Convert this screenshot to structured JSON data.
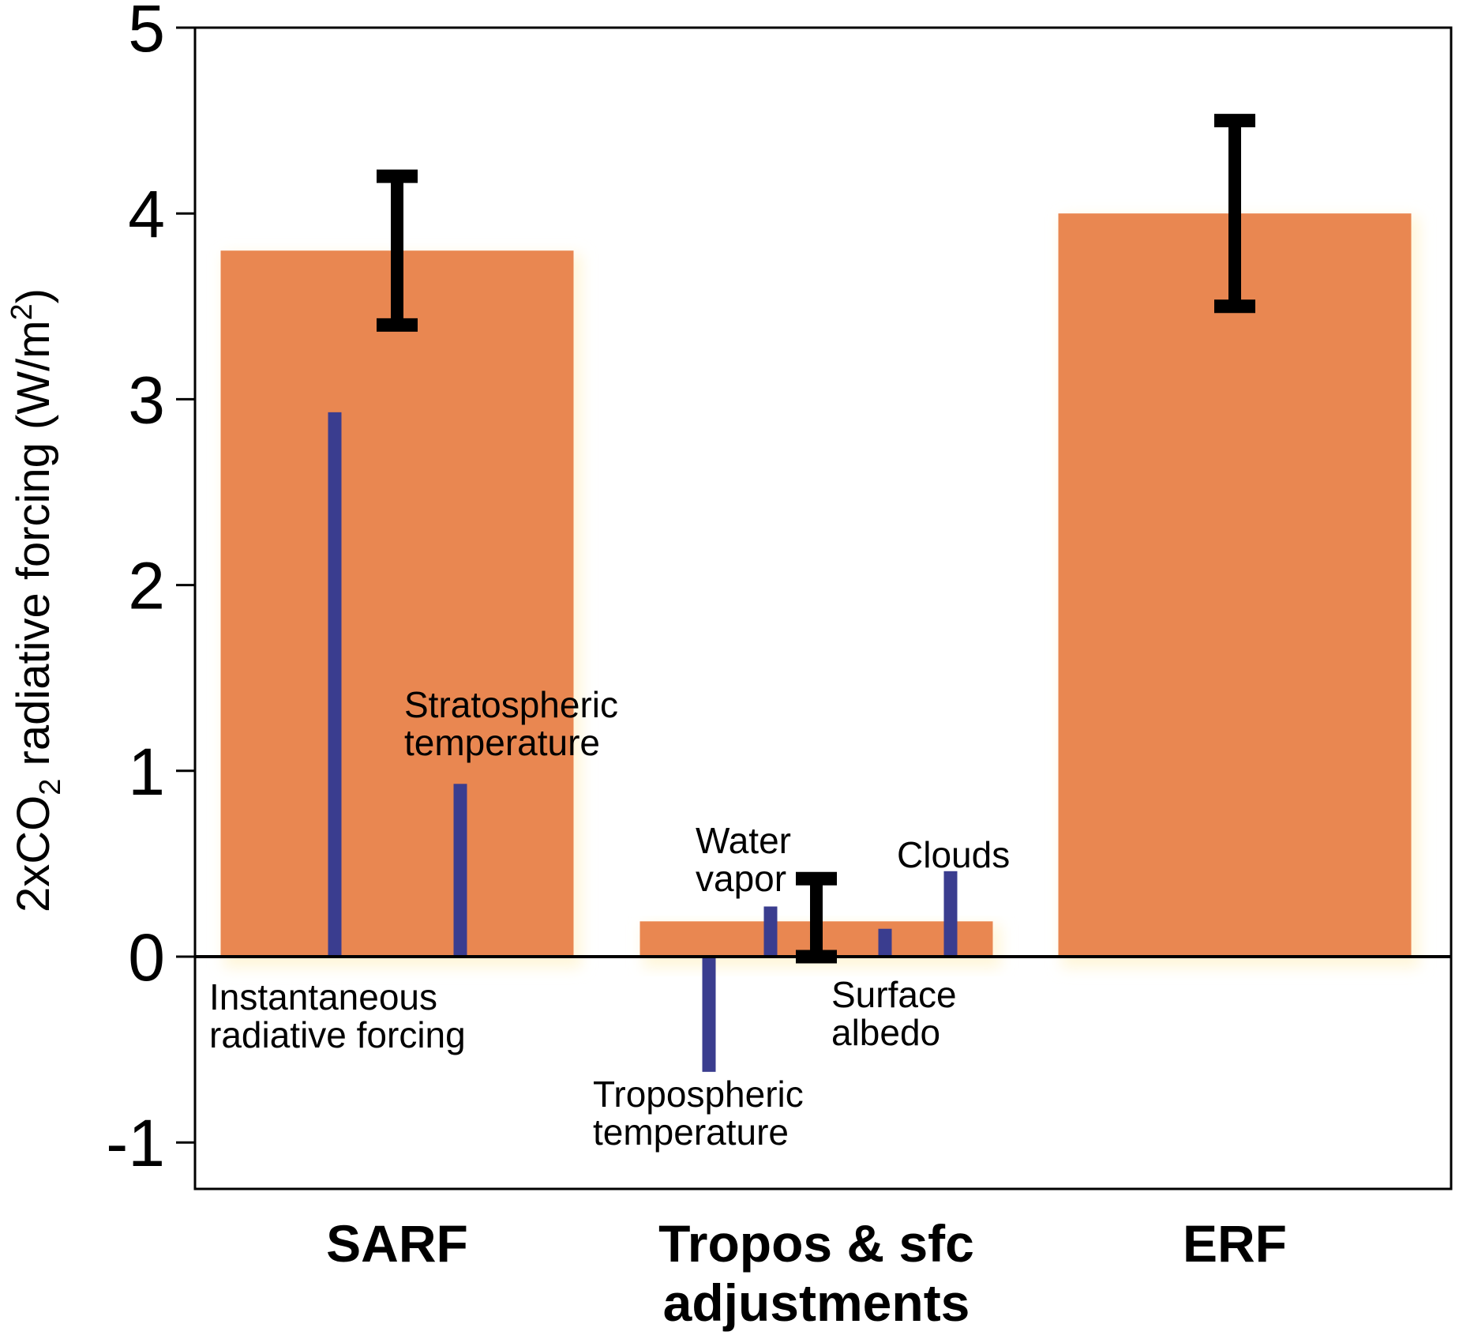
{
  "chart_data": {
    "type": "bar",
    "ylabel": {
      "prefix": "2xCO",
      "sub": "2",
      "middle": " radiative forcing (W/m",
      "sup": "2",
      "suffix": ")"
    },
    "ylim": [
      -1.25,
      5.0
    ],
    "yticks": [
      -1,
      0,
      1,
      2,
      3,
      4,
      5
    ],
    "ytick_labels": [
      "-1",
      "0",
      "1",
      "2",
      "3",
      "4",
      "5"
    ],
    "grid": false,
    "categories": [
      {
        "line1": "SARF",
        "line2": ""
      },
      {
        "line1": "Tropos & sfc",
        "line2": "adjustments"
      },
      {
        "line1": "ERF",
        "line2": ""
      }
    ],
    "bars": [
      {
        "value": 3.8,
        "err_low": 3.4,
        "err_high": 4.2
      },
      {
        "value": 0.19,
        "err_low": 0.0,
        "err_high": 0.42
      },
      {
        "value": 4.0,
        "err_low": 3.5,
        "err_high": 4.5
      }
    ],
    "components": [
      {
        "category": 0,
        "value": 2.93,
        "label_lines": [
          "Instantaneous",
          "radiative forcing"
        ],
        "label_position": "below"
      },
      {
        "category": 0,
        "value": 0.93,
        "label_lines": [
          "Stratospheric",
          "temperature"
        ],
        "label_position": "above"
      },
      {
        "category": 1,
        "value": -0.62,
        "label_lines": [
          "Tropospheric",
          "temperature"
        ],
        "label_position": "below"
      },
      {
        "category": 1,
        "value": 0.27,
        "label_lines": [
          "Water",
          "vapor"
        ],
        "label_position": "above"
      },
      {
        "category": 1,
        "value": 0.15,
        "label_lines": [
          "Surface",
          "albedo"
        ],
        "label_position": "below"
      },
      {
        "category": 1,
        "value": 0.46,
        "label_lines": [
          "Clouds"
        ],
        "label_position": "above"
      }
    ],
    "colors": {
      "bar": "#E98751",
      "bar_glow": "#FFF6D9",
      "component": "#3A3D8F",
      "error_bar": "#000000",
      "axis": "#000000"
    }
  }
}
